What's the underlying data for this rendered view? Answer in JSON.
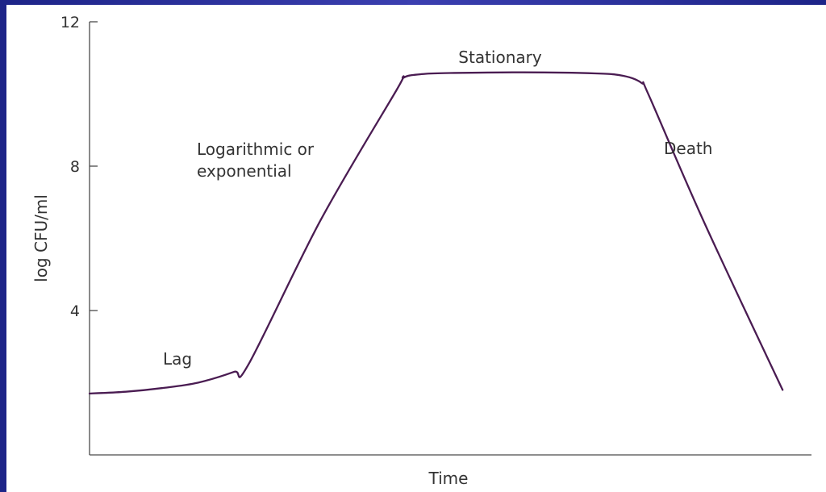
{
  "colors": {
    "curve": "#4a1c52",
    "background": "#ffffff",
    "frame": "#2a2f9a"
  },
  "chart_data": {
    "type": "line",
    "title": "",
    "xlabel": "Time",
    "ylabel": "log CFU/ml",
    "ylim": [
      0,
      12
    ],
    "xlim": [
      0,
      10
    ],
    "yticks": [
      "4",
      "8",
      "12"
    ],
    "grid": false,
    "series": [
      {
        "values": [
          [
            0.0,
            1.7
          ],
          [
            0.5,
            1.75
          ],
          [
            1.0,
            1.85
          ],
          [
            1.5,
            2.0
          ],
          [
            2.0,
            2.3
          ],
          [
            2.2,
            2.5
          ],
          [
            3.2,
            6.5
          ],
          [
            4.25,
            10.1
          ],
          [
            4.35,
            10.45
          ],
          [
            4.6,
            10.55
          ],
          [
            5.0,
            10.58
          ],
          [
            6.0,
            10.6
          ],
          [
            7.0,
            10.57
          ],
          [
            7.4,
            10.5
          ],
          [
            7.65,
            10.3
          ],
          [
            7.75,
            9.95
          ],
          [
            8.5,
            6.5
          ],
          [
            9.6,
            1.8
          ]
        ]
      }
    ],
    "annotations": [
      {
        "text": "Lag"
      },
      {
        "lines": [
          "Logarithmic or",
          "exponential"
        ]
      },
      {
        "text": "Stationary"
      },
      {
        "text": "Death"
      }
    ]
  }
}
